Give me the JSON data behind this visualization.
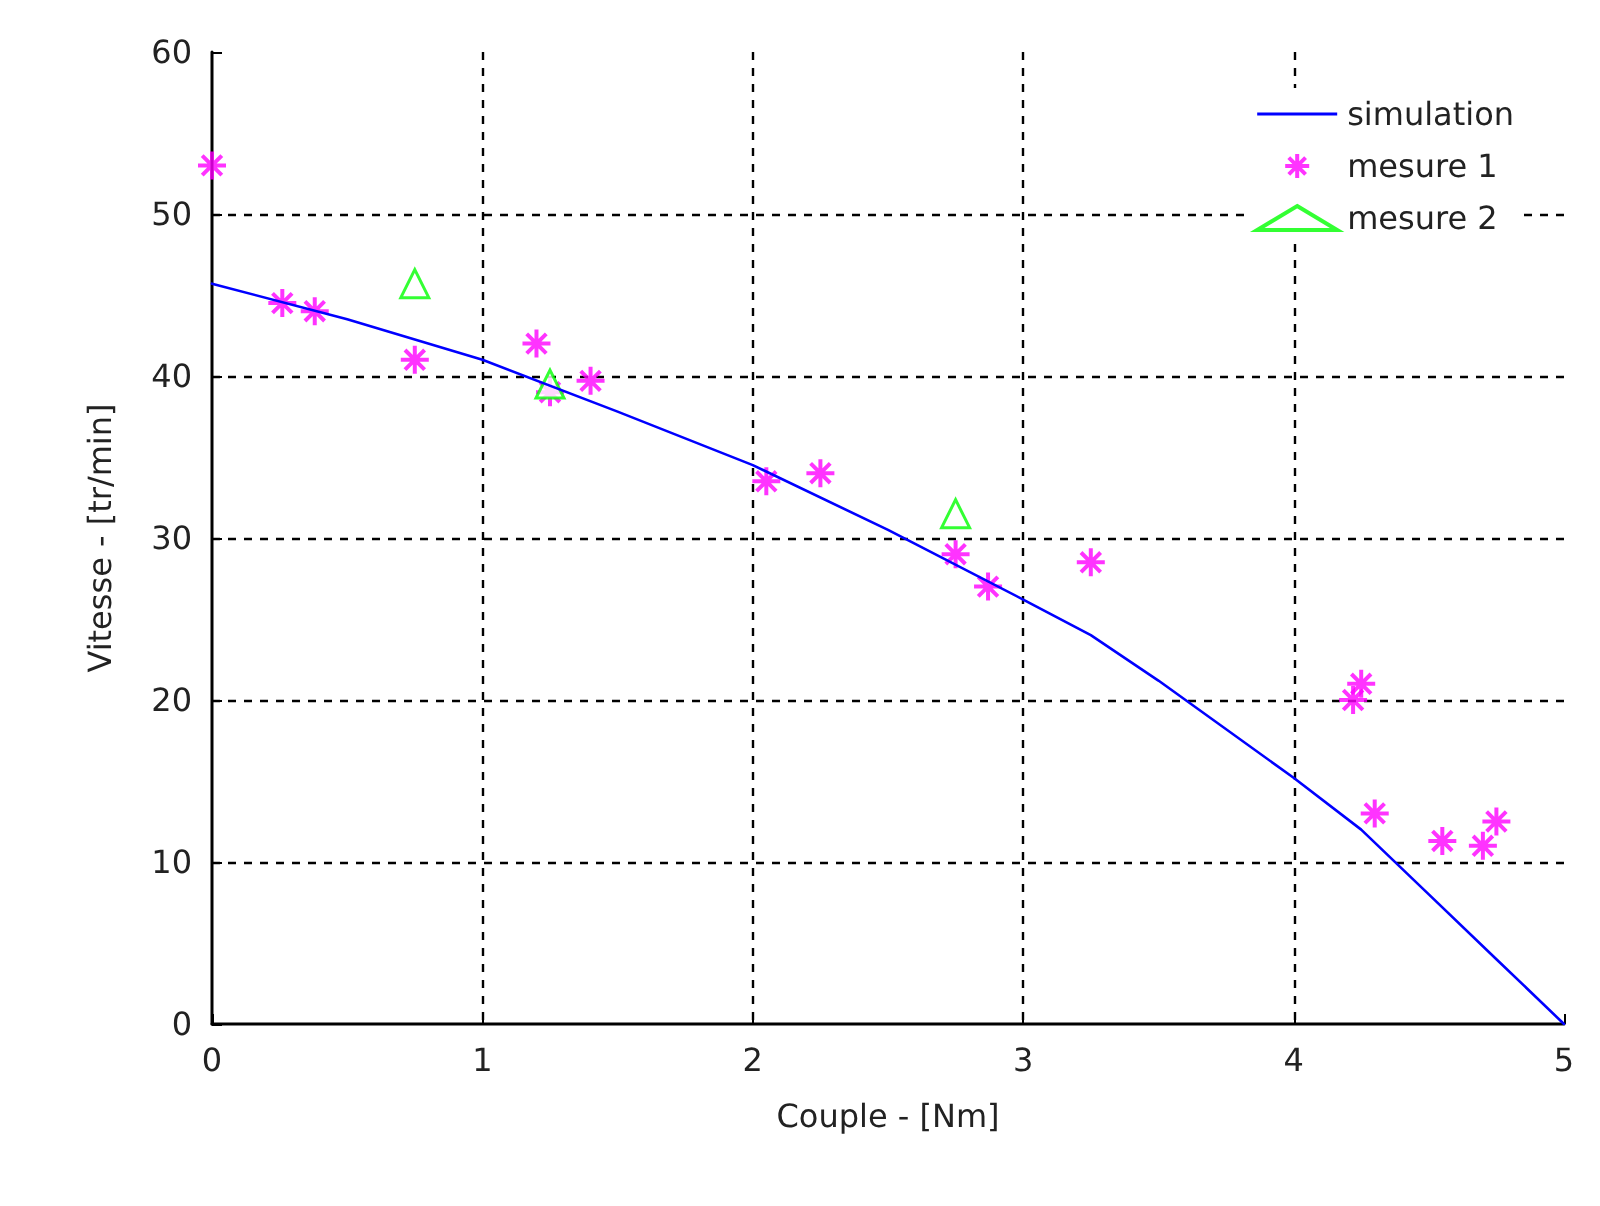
{
  "chart_data": {
    "type": "scatter",
    "xlabel": "Couple - [Nm]",
    "ylabel": "Vitesse - [tr/min]",
    "xlim": [
      0,
      5
    ],
    "ylim": [
      0,
      60
    ],
    "xticks": [
      0,
      1,
      2,
      3,
      4,
      5
    ],
    "yticks": [
      0,
      10,
      20,
      30,
      40,
      50,
      60
    ],
    "grid": true,
    "legend": "top right",
    "series": [
      {
        "name": "simulation",
        "type": "line",
        "color": "#0000ff",
        "marker": "none",
        "line_style": "solid",
        "x": [
          0,
          0.5,
          1,
          1.5,
          2,
          2.5,
          3,
          3.25,
          3.5,
          4,
          4.25,
          4.5,
          4.75,
          5
        ],
        "values": [
          45.7,
          43.5,
          41,
          37.8,
          34.5,
          30.5,
          26.2,
          24,
          21.2,
          15.2,
          12,
          8,
          4,
          0
        ]
      },
      {
        "name": "mesure 1",
        "color": "#ff00ff",
        "marker": "cross",
        "x": [
          0,
          0.26,
          0.38,
          0.75,
          1.2,
          1.25,
          1.4,
          2.05,
          2.25,
          2.75,
          2.87,
          3.25,
          4.22,
          4.25,
          4.3,
          4.55,
          4.7,
          4.75
        ],
        "values": [
          53,
          44.5,
          44,
          41,
          42,
          39,
          39.7,
          33.5,
          34,
          29,
          27,
          28.5,
          20,
          21,
          13,
          11.3,
          11,
          12.5
        ]
      },
      {
        "name": "mesure 2",
        "color": "#00ff00",
        "marker": "triangle",
        "x": [
          0.75,
          1.25,
          2.75
        ],
        "values": [
          45.7,
          39.5,
          31.5
        ]
      }
    ]
  }
}
